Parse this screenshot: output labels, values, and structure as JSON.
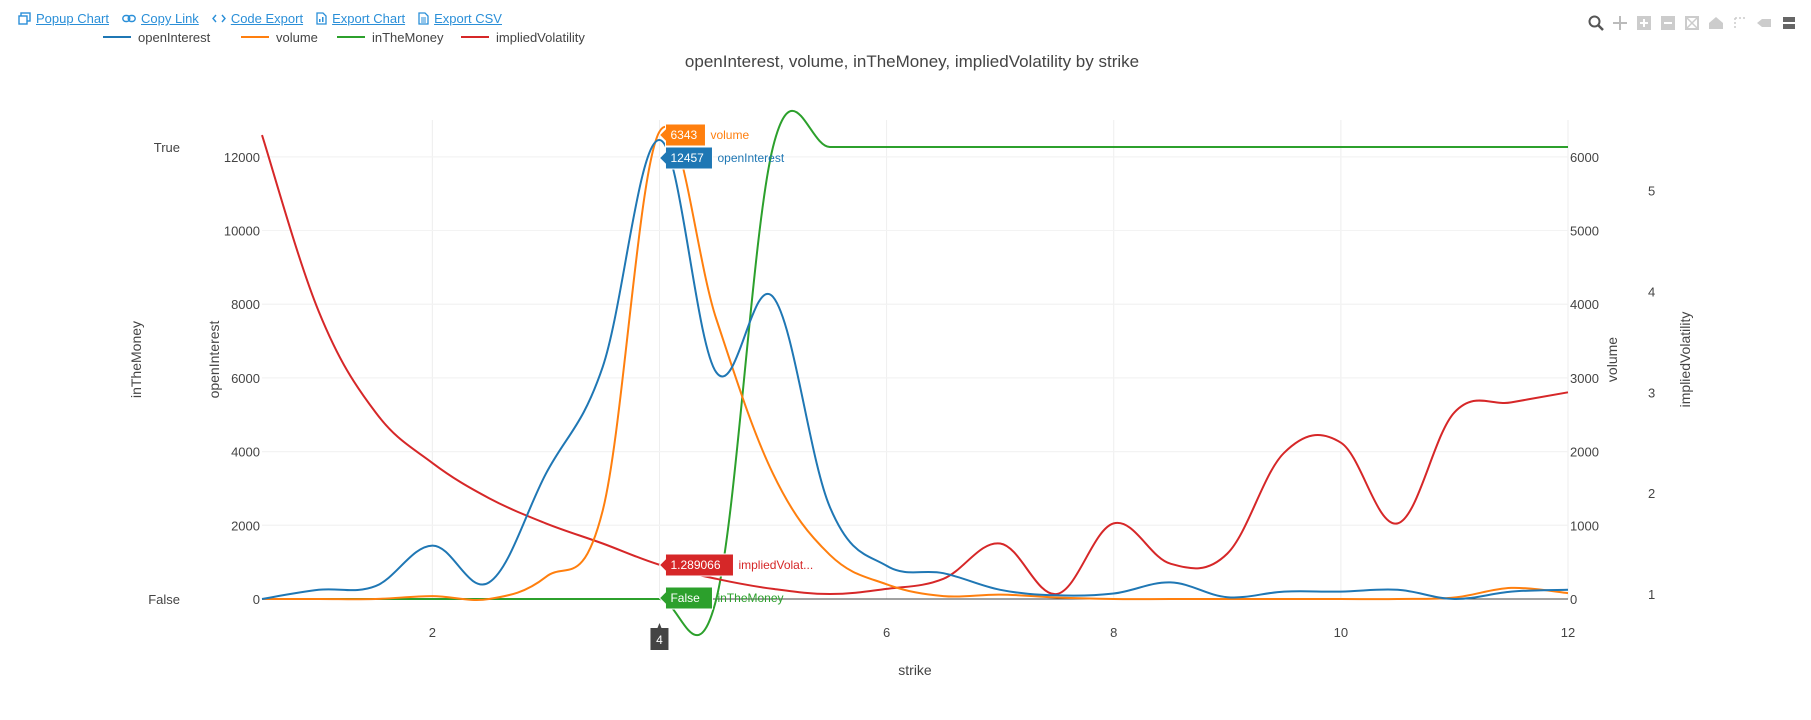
{
  "toolbar": {
    "popup_label": "Popup Chart",
    "copy_label": "Copy Link",
    "code_label": "Code Export",
    "export_chart_label": "Export Chart",
    "export_csv_label": "Export CSV",
    "popup_icon": "popup-window-icon",
    "copy_icon": "link-icon",
    "code_icon": "code-icon",
    "export_chart_icon": "file-chart-icon",
    "export_csv_icon": "file-csv-icon"
  },
  "modebar": [
    "zoom-icon",
    "pan-icon",
    "zoom-in-icon",
    "zoom-out-icon",
    "autoscale-icon",
    "reset-axes-icon",
    "spike-lines-icon",
    "hover-closest-icon",
    "hover-compare-icon"
  ],
  "chart_data": {
    "type": "line",
    "title": "openInterest, volume, inTheMoney, impliedVolatility by strike",
    "xlabel": "strike",
    "x": [
      0.5,
      1.0,
      1.5,
      2.0,
      2.5,
      3.0,
      3.5,
      4.0,
      4.5,
      5.0,
      5.5,
      6.0,
      6.5,
      7.0,
      7.5,
      8.0,
      8.5,
      9.0,
      9.5,
      10.0,
      10.5,
      11.0,
      11.5,
      12.0
    ],
    "xlim": [
      0.5,
      12
    ],
    "xticks": [
      2,
      4,
      6,
      8,
      10,
      12
    ],
    "colors": {
      "openInterest": "#1f77b4",
      "volume": "#ff7f0e",
      "inTheMoney": "#2ca02c",
      "impliedVolatility": "#d62728"
    },
    "axes": {
      "openInterest": {
        "label": "openInterest",
        "side": "left",
        "range": [
          0,
          13000
        ],
        "ticks": [
          0,
          2000,
          4000,
          6000,
          8000,
          10000,
          12000
        ]
      },
      "inTheMoney": {
        "label": "inTheMoney",
        "side": "left",
        "categories": [
          "False",
          "True"
        ]
      },
      "volume": {
        "label": "volume",
        "side": "right",
        "range": [
          0,
          6500
        ],
        "ticks": [
          0,
          1000,
          2000,
          3000,
          4000,
          5000,
          6000
        ]
      },
      "impliedVolatility": {
        "label": "impliedVolatility",
        "side": "right",
        "range": [
          0.95,
          5.7
        ],
        "ticks": [
          1,
          2,
          3,
          4,
          5
        ]
      }
    },
    "series": [
      {
        "name": "openInterest",
        "axis": "openInterest",
        "values": [
          0,
          250,
          350,
          1450,
          450,
          3400,
          6300,
          12457,
          6150,
          8200,
          2500,
          900,
          700,
          250,
          100,
          150,
          450,
          50,
          200,
          200,
          250,
          0,
          200,
          250
        ]
      },
      {
        "name": "volume",
        "axis": "volume",
        "values": [
          0,
          0,
          0,
          40,
          0,
          300,
          1200,
          6343,
          3800,
          1700,
          600,
          200,
          40,
          60,
          20,
          0,
          0,
          0,
          0,
          0,
          0,
          20,
          150,
          80
        ]
      },
      {
        "name": "inTheMoney",
        "axis": "inTheMoney",
        "values": [
          0,
          0,
          0,
          0,
          0,
          0,
          0,
          0,
          0,
          1,
          1,
          1,
          1,
          1,
          1,
          1,
          1,
          1,
          1,
          1,
          1,
          1,
          1,
          1
        ]
      },
      {
        "name": "impliedVolatility",
        "axis": "impliedVolatility",
        "values": [
          5.55,
          3.8,
          2.8,
          2.3,
          1.95,
          1.7,
          1.5,
          1.289066,
          1.15,
          1.05,
          1.0,
          1.05,
          1.15,
          1.5,
          1.0,
          1.7,
          1.3,
          1.4,
          2.4,
          2.5,
          1.7,
          2.8,
          2.9,
          3.0
        ]
      }
    ],
    "hover": {
      "x_label": "4",
      "items": [
        {
          "series": "volume",
          "value": "6343",
          "name": "volume"
        },
        {
          "series": "openInterest",
          "value": "12457",
          "name": "openInterest"
        },
        {
          "series": "impliedVolatility",
          "value": "1.289066",
          "name": "impliedVolat..."
        },
        {
          "series": "inTheMoney",
          "value": "False",
          "name": "inTheMoney"
        }
      ]
    },
    "legend": {
      "placement": "top-left",
      "orientation": "horizontal"
    },
    "grid": true
  }
}
